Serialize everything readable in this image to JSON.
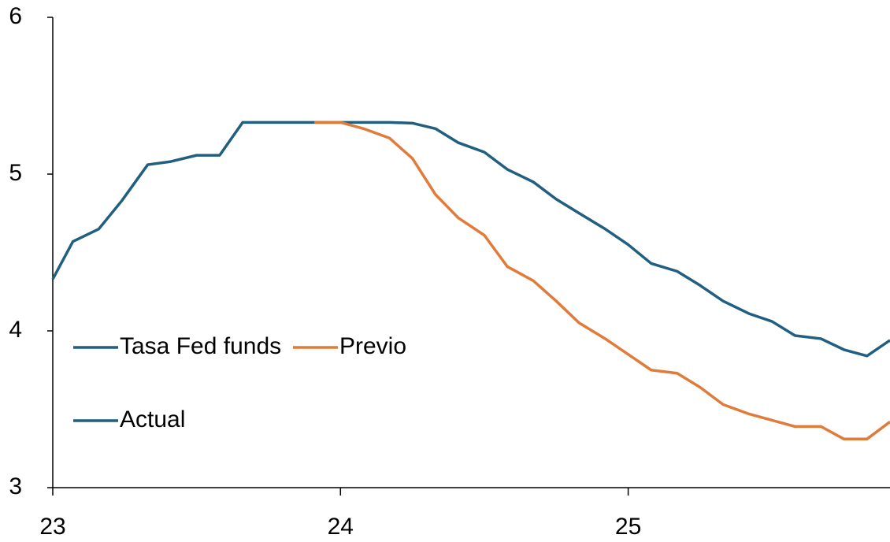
{
  "chart_data": {
    "type": "line",
    "xlim": [
      23,
      25.91
    ],
    "xticks": [
      23,
      24,
      25
    ],
    "ylim": [
      3,
      6
    ],
    "yticks": [
      3,
      4,
      5,
      6
    ],
    "legend": "lower left",
    "series": [
      {
        "name": "Tasa Fed funds",
        "color": "#215f80",
        "x": [
          23.0,
          23.07,
          23.16,
          23.24,
          23.33,
          23.41,
          23.5,
          23.58,
          23.66,
          23.75,
          23.83,
          23.91
        ],
        "values": [
          4.33,
          4.57,
          4.65,
          4.83,
          5.06,
          5.08,
          5.12,
          5.12,
          5.33,
          5.33,
          5.33,
          5.33
        ]
      },
      {
        "name": "Previo",
        "color": "#e07b39",
        "x": [
          23.91,
          24.0,
          24.08,
          24.17,
          24.25,
          24.33,
          24.41,
          24.5,
          24.58,
          24.67,
          24.75,
          24.83,
          24.92,
          25.0,
          25.08,
          25.17,
          25.25,
          25.33,
          25.42,
          25.5,
          25.58,
          25.67,
          25.75,
          25.83,
          25.91
        ],
        "values": [
          5.33,
          5.33,
          5.29,
          5.23,
          5.1,
          4.87,
          4.72,
          4.61,
          4.41,
          4.32,
          4.19,
          4.05,
          3.95,
          3.85,
          3.75,
          3.73,
          3.64,
          3.53,
          3.47,
          3.43,
          3.39,
          3.39,
          3.31,
          3.31,
          3.42
        ]
      },
      {
        "name": "Actual",
        "color": "#215f80",
        "x": [
          23.91,
          24.0,
          24.08,
          24.17,
          24.25,
          24.33,
          24.41,
          24.5,
          24.58,
          24.67,
          24.75,
          24.83,
          24.92,
          25.0,
          25.08,
          25.17,
          25.25,
          25.33,
          25.42,
          25.5,
          25.58,
          25.67,
          25.75,
          25.83,
          25.91
        ],
        "values": [
          5.33,
          5.33,
          5.33,
          5.33,
          5.325,
          5.29,
          5.2,
          5.14,
          5.03,
          4.95,
          4.84,
          4.75,
          4.65,
          4.55,
          4.43,
          4.38,
          4.29,
          4.19,
          4.11,
          4.06,
          3.97,
          3.95,
          3.88,
          3.84,
          3.94
        ]
      }
    ]
  }
}
